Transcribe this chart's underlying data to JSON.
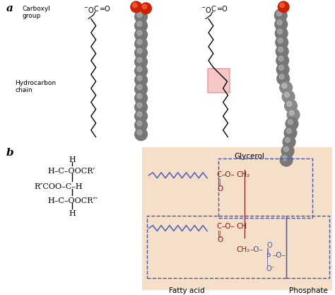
{
  "bg_color": "#ffffff",
  "panel_b_bg": "#f5dfc8",
  "label_a": "a",
  "label_b": "b",
  "carboxyl_label": "Carboxyl\ngroup",
  "hydrocarbon_label": "Hydrocarbon\nchain",
  "glycerol_label": "Glycerol",
  "fatty_acid_label": "Fatty acid",
  "phosphate_label": "Phosphate",
  "dashed_color": "#4455aa",
  "dark_red": "#8b1a1a",
  "chain_color": "#5566bb",
  "red_sphere": "#cc2200",
  "gray_sphere": "#777777",
  "gray_highlight": "#bbbbbb",
  "text_color": "#000000",
  "pink_kink": "#f5b0b0",
  "pink_kink_edge": "#dd8888"
}
